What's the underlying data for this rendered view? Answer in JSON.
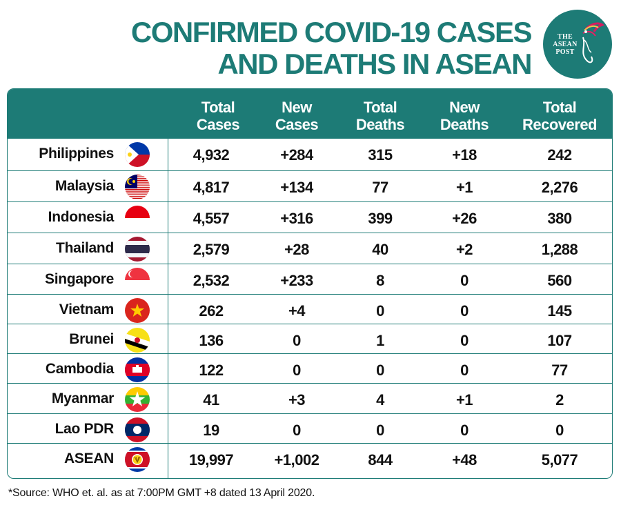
{
  "title": {
    "line1": "CONFIRMED COVID-19 CASES",
    "line2": "AND DEATHS IN ASEAN"
  },
  "logo": {
    "line1": "THE",
    "line2": "ASEAN",
    "line3": "POST"
  },
  "colors": {
    "accent": "#1d7b76",
    "text": "#111111"
  },
  "chart_data": {
    "type": "table",
    "columns": [
      "Total Cases",
      "New Cases",
      "Total Deaths",
      "New Deaths",
      "Total Recovered"
    ],
    "headers": [
      {
        "line1": "Total",
        "line2": "Cases"
      },
      {
        "line1": "New",
        "line2": "Cases"
      },
      {
        "line1": "Total",
        "line2": "Deaths"
      },
      {
        "line1": "New",
        "line2": "Deaths"
      },
      {
        "line1": "Total",
        "line2": "Recovered"
      }
    ],
    "rows": [
      {
        "country": "Philippines",
        "flag": "philippines-flag-icon",
        "total_cases": "4,932",
        "new_cases": "+284",
        "total_deaths": "315",
        "new_deaths": "+18",
        "total_recovered": "242"
      },
      {
        "country": "Malaysia",
        "flag": "malaysia-flag-icon",
        "total_cases": "4,817",
        "new_cases": "+134",
        "total_deaths": "77",
        "new_deaths": "+1",
        "total_recovered": "2,276"
      },
      {
        "country": "Indonesia",
        "flag": "indonesia-flag-icon",
        "total_cases": "4,557",
        "new_cases": "+316",
        "total_deaths": "399",
        "new_deaths": "+26",
        "total_recovered": "380"
      },
      {
        "country": "Thailand",
        "flag": "thailand-flag-icon",
        "total_cases": "2,579",
        "new_cases": "+28",
        "total_deaths": "40",
        "new_deaths": "+2",
        "total_recovered": "1,288"
      },
      {
        "country": "Singapore",
        "flag": "singapore-flag-icon",
        "total_cases": "2,532",
        "new_cases": "+233",
        "total_deaths": "8",
        "new_deaths": "0",
        "total_recovered": "560"
      },
      {
        "country": "Vietnam",
        "flag": "vietnam-flag-icon",
        "total_cases": "262",
        "new_cases": "+4",
        "total_deaths": "0",
        "new_deaths": "0",
        "total_recovered": "145"
      },
      {
        "country": "Brunei",
        "flag": "brunei-flag-icon",
        "total_cases": "136",
        "new_cases": "0",
        "total_deaths": "1",
        "new_deaths": "0",
        "total_recovered": "107"
      },
      {
        "country": "Cambodia",
        "flag": "cambodia-flag-icon",
        "total_cases": "122",
        "new_cases": "0",
        "total_deaths": "0",
        "new_deaths": "0",
        "total_recovered": "77"
      },
      {
        "country": "Myanmar",
        "flag": "myanmar-flag-icon",
        "total_cases": "41",
        "new_cases": "+3",
        "total_deaths": "4",
        "new_deaths": "+1",
        "total_recovered": "2"
      },
      {
        "country": "Lao PDR",
        "flag": "laos-flag-icon",
        "total_cases": "19",
        "new_cases": "0",
        "total_deaths": "0",
        "new_deaths": "0",
        "total_recovered": "0"
      },
      {
        "country": "ASEAN",
        "flag": "asean-flag-icon",
        "total_cases": "19,997",
        "new_cases": "+1,002",
        "total_deaths": "844",
        "new_deaths": "+48",
        "total_recovered": "5,077"
      }
    ]
  },
  "source": "*Source: WHO et. al. as at 7:00PM GMT +8 dated 13 April 2020."
}
